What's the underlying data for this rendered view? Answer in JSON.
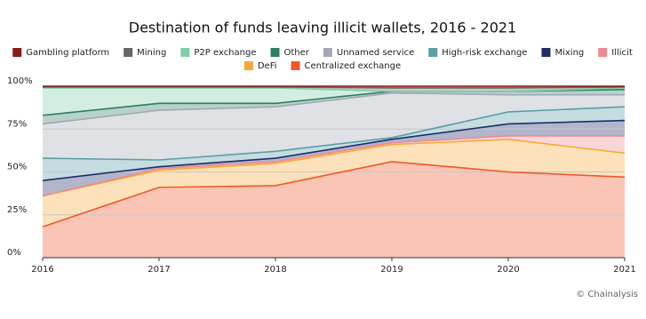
{
  "chart_data": {
    "type": "stacked-area",
    "title": "Destination of funds leaving illicit wallets, 2016 - 2021",
    "note": "© Chainalysis",
    "x": [
      2016,
      2017,
      2018,
      2019,
      2020,
      2021
    ],
    "xlim": [
      2016,
      2021
    ],
    "xticks": [
      2016,
      2017,
      2018,
      2019,
      2020,
      2021
    ],
    "ylim": [
      0,
      100
    ],
    "yticks": [
      {
        "value": 0,
        "label": "0%"
      },
      {
        "value": 25,
        "label": "25%"
      },
      {
        "value": 50,
        "label": "50%"
      },
      {
        "value": 75,
        "label": "75%"
      },
      {
        "value": 100,
        "label": "100%"
      }
    ],
    "grid": true,
    "series": [
      {
        "name": "Centralized exchange",
        "color": "#f0582a",
        "values": [
          18,
          41,
          42,
          56,
          50,
          47
        ]
      },
      {
        "name": "DeFi",
        "color": "#f5a93a",
        "values": [
          18,
          10,
          13,
          10,
          19,
          14
        ]
      },
      {
        "name": "Illicit",
        "color": "#f08a8f",
        "values": [
          0,
          1,
          1,
          1,
          2,
          10
        ]
      },
      {
        "name": "Mixing",
        "color": "#1f2d6b",
        "values": [
          9,
          1,
          2,
          2,
          7,
          9
        ]
      },
      {
        "name": "High-risk exchange",
        "color": "#5a9ea8",
        "values": [
          13,
          4,
          4,
          1,
          7,
          8
        ]
      },
      {
        "name": "Unnamed service",
        "color": "#a3a9b1",
        "values": [
          20,
          29,
          26,
          26,
          10,
          7
        ]
      },
      {
        "name": "Other",
        "color": "#2e7d66",
        "values": [
          5,
          4,
          2,
          1,
          2,
          3
        ]
      },
      {
        "name": "P2P exchange",
        "color": "#7fcfa6",
        "values": [
          16,
          9,
          9,
          0,
          0,
          1
        ]
      },
      {
        "name": "Mining",
        "color": "#666666",
        "values": [
          0.5,
          0.5,
          0.5,
          2,
          2,
          0.5
        ]
      },
      {
        "name": "Gambling platform",
        "color": "#8b1a1a",
        "values": [
          0.5,
          0.5,
          0.5,
          1,
          1,
          0.5
        ]
      }
    ]
  }
}
